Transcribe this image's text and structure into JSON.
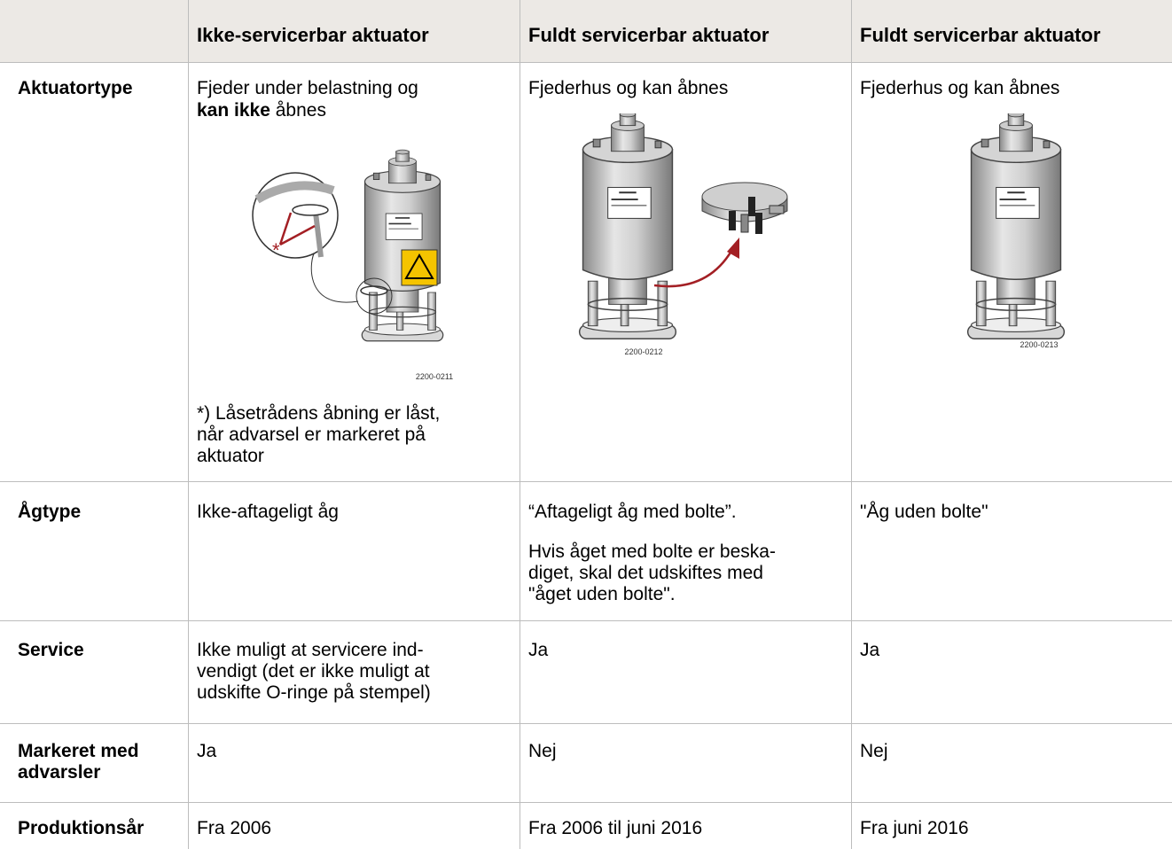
{
  "header": {
    "columns": [
      "Ikke-servicerbar aktuator",
      "Fuldt servicerbar aktuator",
      "Fuldt servicerbar aktuator"
    ]
  },
  "rows": [
    {
      "label": "Aktuatortype",
      "cells": [
        {
          "text": "Fjeder under belastning og",
          "emphasis": "kan ikke",
          "text_end": "åbnes",
          "callout": "*",
          "figure_code": "2200-0211",
          "note_lines": [
            "*) Låsetrådens åbning er låst,",
            "når advarsel er markeret på",
            "aktuator"
          ]
        },
        {
          "text": "Fjederhus og kan åbnes",
          "figure_code": "2200-0212"
        },
        {
          "text": "Fjederhus og kan åbnes",
          "figure_code": "2200-0213"
        }
      ]
    },
    {
      "label": "Ågtype",
      "cells": [
        {
          "text": "Ikke-aftageligt åg"
        },
        {
          "text": "“Aftageligt åg med bolte”.",
          "note_lines": [
            "Hvis åget med bolte er beska-",
            "diget, skal det udskiftes med",
            "\"åget uden bolte\"."
          ]
        },
        {
          "text": "\"Åg uden bolte\""
        }
      ]
    },
    {
      "label": "Service",
      "cells": [
        {
          "lines": [
            "Ikke muligt at servicere ind-",
            "vendigt (det er ikke muligt at",
            "udskifte O-ringe på stempel)"
          ]
        },
        {
          "text": "Ja"
        },
        {
          "text": "Ja"
        }
      ]
    },
    {
      "label_lines": [
        "Markeret med",
        "advarsler"
      ],
      "cells": [
        {
          "text": "Ja"
        },
        {
          "text": "Nej"
        },
        {
          "text": "Nej"
        }
      ]
    },
    {
      "label": "Produktionsår",
      "cells": [
        {
          "text": "Fra 2006"
        },
        {
          "text": "Fra 2006 til juni 2016"
        },
        {
          "text": "Fra juni 2016"
        }
      ]
    }
  ]
}
